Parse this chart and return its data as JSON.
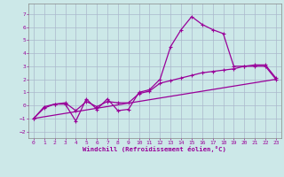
{
  "title": "",
  "xlabel": "Windchill (Refroidissement éolien,°C)",
  "ylabel": "",
  "xlim": [
    -0.5,
    23.5
  ],
  "ylim": [
    -2.5,
    7.8
  ],
  "xticks": [
    0,
    1,
    2,
    3,
    4,
    5,
    6,
    7,
    8,
    9,
    10,
    11,
    12,
    13,
    14,
    15,
    16,
    17,
    18,
    19,
    20,
    21,
    22,
    23
  ],
  "yticks": [
    -2,
    -1,
    0,
    1,
    2,
    3,
    4,
    5,
    6,
    7
  ],
  "bg_color": "#cce8e8",
  "grid_color": "#aab8cc",
  "line_color": "#990099",
  "line_width": 0.9,
  "marker": "+",
  "marker_size": 3,
  "series1_x": [
    0,
    1,
    2,
    3,
    4,
    5,
    6,
    7,
    8,
    9,
    10,
    11,
    12,
    13,
    14,
    15,
    16,
    17,
    18,
    19,
    20,
    21,
    22,
    23
  ],
  "series1_y": [
    -1.0,
    -0.2,
    0.1,
    0.1,
    -1.2,
    0.5,
    -0.3,
    0.5,
    -0.4,
    -0.3,
    1.0,
    1.2,
    2.0,
    4.5,
    5.8,
    6.8,
    6.2,
    5.8,
    5.5,
    3.0,
    3.0,
    3.0,
    3.0,
    2.0
  ],
  "series2_x": [
    0,
    1,
    2,
    3,
    4,
    5,
    6,
    7,
    8,
    9,
    10,
    11,
    12,
    13,
    14,
    15,
    16,
    17,
    18,
    19,
    20,
    21,
    22,
    23
  ],
  "series2_y": [
    -1.0,
    -0.1,
    0.1,
    0.2,
    -0.4,
    0.3,
    -0.1,
    0.3,
    0.2,
    0.2,
    0.9,
    1.1,
    1.7,
    1.9,
    2.1,
    2.3,
    2.5,
    2.6,
    2.7,
    2.8,
    3.0,
    3.1,
    3.1,
    2.1
  ],
  "series3_x": [
    0,
    23
  ],
  "series3_y": [
    -1.0,
    2.0
  ]
}
